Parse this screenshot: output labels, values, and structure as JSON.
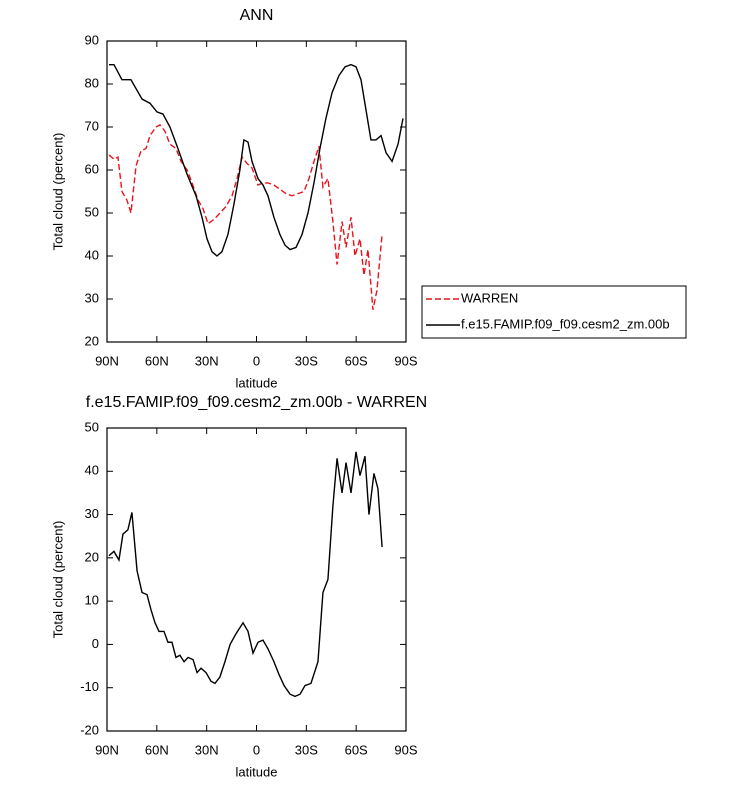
{
  "chart_data": [
    {
      "type": "line",
      "title": "ANN",
      "xlabel": "latitude",
      "ylabel": "Total cloud (percent)",
      "xlim": [
        90,
        -90
      ],
      "xticks": [
        {
          "value": 90,
          "label": "90N"
        },
        {
          "value": 60,
          "label": "60N"
        },
        {
          "value": 30,
          "label": "30N"
        },
        0,
        {
          "value": -30,
          "label": "30S"
        },
        {
          "value": -60,
          "label": "60S"
        },
        {
          "value": -90,
          "label": "90S"
        }
      ],
      "ylim": [
        20,
        90
      ],
      "yticks": [
        20,
        30,
        40,
        50,
        60,
        70,
        80,
        90
      ],
      "legend": "right",
      "series": [
        {
          "name": "WARREN",
          "color": "#e8141b",
          "style": "dashed",
          "x": [
            88.8,
            85.8,
            83.4,
            81,
            78,
            75.6,
            72.5,
            69.5,
            66.5,
            64.1,
            60.5,
            58.1,
            55.1,
            52.1,
            48.5,
            45.4,
            41.8,
            38.8,
            35.2,
            32.2,
            29.2,
            25.6,
            22,
            18.4,
            14.7,
            11.7,
            8.7,
            5.7,
            2.7,
            -0.9,
            -3.9,
            -6.9,
            -10.5,
            -14.1,
            -17.8,
            -21.4,
            -25,
            -28.6,
            -31.6,
            -34.6,
            -37.6,
            -40,
            -43,
            -46,
            -48.5,
            -51.5,
            -53.9,
            -56.9,
            -59.3,
            -62.3,
            -64.7,
            -67.1,
            -70.1,
            -72.5,
            -75.6
          ],
          "values": [
            63.5,
            62.5,
            63,
            55,
            53,
            50,
            61,
            64.5,
            65,
            68,
            70,
            70.5,
            69,
            66,
            65,
            62,
            60,
            57,
            53,
            51,
            47.5,
            48.5,
            50,
            51.5,
            54,
            58,
            63,
            61.5,
            60.5,
            56.5,
            57,
            57,
            56.5,
            55.5,
            54.5,
            54,
            54.5,
            55,
            58,
            62,
            65.5,
            56,
            58,
            48,
            38,
            48,
            42,
            49,
            40,
            44,
            35.5,
            41.5,
            27.5,
            32,
            45
          ]
        },
        {
          "name": "f.e15.FAMIP.f09_f09.cesm2_zm.00b",
          "color": "#000000",
          "style": "solid",
          "x": [
            88.8,
            85.8,
            81,
            75.6,
            68.9,
            64.1,
            59.9,
            56.3,
            52.1,
            47.3,
            41.8,
            36.4,
            32.8,
            29.8,
            26.8,
            23.8,
            20.8,
            17.2,
            13.6,
            10,
            7.6,
            5.1,
            2.7,
            -0.9,
            -3.9,
            -6.9,
            -10.5,
            -14.1,
            -17.2,
            -20.2,
            -23.8,
            -27.4,
            -31,
            -34.6,
            -38.2,
            -41.8,
            -45.5,
            -49.7,
            -53.3,
            -56.9,
            -59.9,
            -62.9,
            -65.9,
            -68.9,
            -71.9,
            -75,
            -78,
            -81.6,
            -85.2,
            -88.2
          ],
          "values": [
            84.5,
            84.5,
            81,
            81,
            76.5,
            75.5,
            73.5,
            73,
            70,
            65,
            59,
            54,
            49,
            44,
            41,
            40,
            41,
            45,
            52,
            60,
            67,
            66.5,
            62,
            58,
            56.5,
            54,
            49,
            45,
            42.5,
            41.5,
            42,
            45,
            50,
            57,
            65,
            72,
            78,
            82,
            84,
            84.5,
            84,
            81,
            74,
            67,
            67,
            68,
            64,
            62,
            66,
            72
          ]
        }
      ]
    },
    {
      "type": "line",
      "title": "f.e15.FAMIP.f09_f09.cesm2_zm.00b - WARREN",
      "xlabel": "latitude",
      "ylabel": "Total cloud (percent)",
      "xlim": [
        90,
        -90
      ],
      "xticks": [
        {
          "value": 90,
          "label": "90N"
        },
        {
          "value": 60,
          "label": "60N"
        },
        {
          "value": 30,
          "label": "30N"
        },
        0,
        {
          "value": -30,
          "label": "30S"
        },
        {
          "value": -60,
          "label": "60S"
        },
        {
          "value": -90,
          "label": "90S"
        }
      ],
      "ylim": [
        -20,
        50
      ],
      "yticks": [
        -20,
        -10,
        0,
        10,
        20,
        30,
        40,
        50
      ],
      "series": [
        {
          "color": "#000000",
          "style": "solid",
          "x": [
            88.8,
            85.8,
            82.8,
            80.4,
            77.4,
            75,
            71.9,
            68.9,
            65.9,
            63.5,
            61.1,
            58.7,
            55.7,
            53.3,
            50.9,
            48.5,
            46.1,
            43.6,
            41.2,
            38.2,
            35.8,
            33.4,
            30.4,
            27.4,
            25,
            22,
            19,
            15.9,
            12.3,
            8.1,
            5.1,
            2.1,
            -0.9,
            -3.9,
            -6.9,
            -10.5,
            -13.6,
            -16.6,
            -20.2,
            -23.2,
            -26.2,
            -29.2,
            -32.8,
            -37,
            -40,
            -43,
            -46,
            -48.5,
            -51.5,
            -53.9,
            -56.9,
            -59.9,
            -62.3,
            -65.3,
            -67.7,
            -70.7,
            -73.1,
            -75.6
          ],
          "values": [
            20.5,
            21.5,
            19.5,
            25.5,
            26.5,
            30.5,
            17,
            12,
            11.5,
            8,
            5,
            3,
            3,
            0.5,
            0.5,
            -3,
            -2.5,
            -4,
            -3,
            -3.5,
            -6.5,
            -5.5,
            -6.5,
            -8.5,
            -9,
            -7.5,
            -4,
            0,
            2.5,
            5,
            3,
            -2,
            0.5,
            1,
            -1,
            -4,
            -7,
            -9.5,
            -11.5,
            -12,
            -11.5,
            -9.5,
            -9,
            -4,
            12,
            15,
            32,
            43,
            35,
            42,
            35,
            44.5,
            39,
            43.5,
            30,
            39.5,
            36,
            22.5
          ]
        }
      ]
    }
  ]
}
